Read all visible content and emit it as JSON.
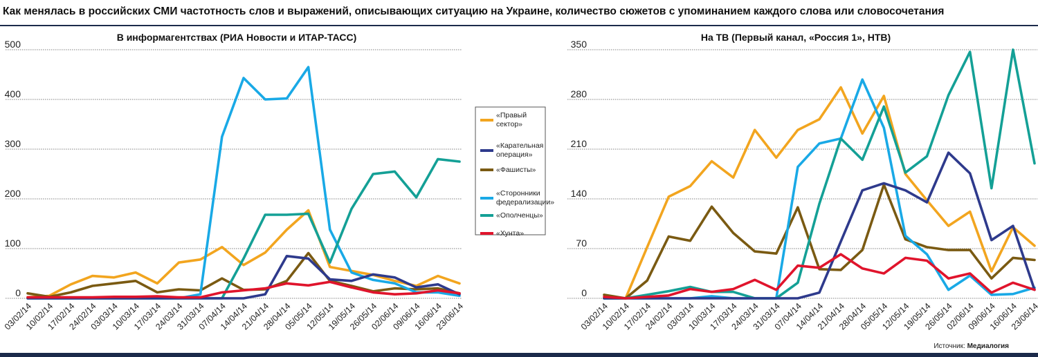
{
  "title": "Как менялась в российских СМИ частотность слов и выражений, описывающих ситуацию на Украине, количество сюжетов с упоминанием каждого слова или словосочетания",
  "source_label": "Источник:",
  "source_value": "Медиалогия",
  "colors": {
    "pravy_sektor": "#f2a51f",
    "karatelnaya": "#2e3a8c",
    "fashisty": "#7a5a12",
    "storonniki": "#19a9e6",
    "opolchentsy": "#14a096",
    "hunta": "#e0142c"
  },
  "legend": [
    {
      "key": "pravy_sektor",
      "lines": [
        "«Правый",
        "сектор»"
      ]
    },
    {
      "key": "karatelnaya",
      "lines": [
        "«Карательная",
        "операция»"
      ]
    },
    {
      "key": "fashisty",
      "lines": [
        "«Фашисты»"
      ]
    },
    {
      "key": "storonniki",
      "lines": [
        "«Сторонники",
        "федерализации»"
      ]
    },
    {
      "key": "opolchentsy",
      "lines": [
        "«Ополченцы»"
      ]
    },
    {
      "key": "hunta",
      "lines": [
        "«Хунта»"
      ]
    }
  ],
  "chart_data": [
    {
      "type": "line",
      "title": "В информагентствах (РИА Новости и ИТАР-ТАСС)",
      "ylim": [
        0,
        500
      ],
      "yticks": [
        "0",
        "100",
        "200",
        "300",
        "400",
        "500"
      ],
      "grid": true,
      "x": [
        "03/02/14",
        "10/02/14",
        "17/02/14",
        "24/02/14",
        "03/03/14",
        "10/03/14",
        "17/03/14",
        "24/03/14",
        "31/03/14",
        "07/04/14",
        "14/04/14",
        "21/04/14",
        "28/04/14",
        "05/05/14",
        "12/05/14",
        "19/05/14",
        "26/05/14",
        "02/06/14",
        "09/06/14",
        "16/06/14",
        "23/06/14"
      ],
      "series": [
        {
          "name": "«Правый сектор»",
          "key": "pravy_sektor",
          "values": [
            2,
            5,
            28,
            45,
            42,
            52,
            30,
            72,
            78,
            103,
            67,
            92,
            138,
            177,
            63,
            55,
            47,
            35,
            25,
            45,
            30
          ]
        },
        {
          "name": "«Карательная операция»",
          "key": "karatelnaya",
          "values": [
            0,
            0,
            0,
            0,
            0,
            0,
            0,
            0,
            0,
            0,
            0,
            8,
            85,
            80,
            38,
            35,
            48,
            42,
            22,
            28,
            8
          ]
        },
        {
          "name": "«Фашисты»",
          "key": "fashisty",
          "values": [
            10,
            3,
            12,
            25,
            30,
            35,
            12,
            18,
            16,
            40,
            17,
            18,
            35,
            91,
            35,
            25,
            14,
            20,
            18,
            20,
            10
          ]
        },
        {
          "name": "«Сторонники федерализации»",
          "key": "storonniki",
          "values": [
            0,
            0,
            0,
            0,
            0,
            0,
            0,
            0,
            8,
            325,
            443,
            400,
            402,
            465,
            138,
            52,
            37,
            30,
            12,
            12,
            5
          ]
        },
        {
          "name": "«Ополченцы»",
          "key": "opolchentsy",
          "values": [
            0,
            0,
            0,
            0,
            0,
            0,
            0,
            0,
            0,
            0,
            80,
            168,
            168,
            170,
            72,
            180,
            250,
            255,
            203,
            280,
            275
          ]
        },
        {
          "name": "«Хунта»",
          "key": "hunta",
          "values": [
            2,
            2,
            2,
            2,
            3,
            3,
            4,
            2,
            2,
            12,
            16,
            20,
            30,
            26,
            33,
            22,
            12,
            8,
            10,
            16,
            10
          ]
        }
      ]
    },
    {
      "type": "line",
      "title": "На ТВ (Первый канал, «Россия 1», НТВ)",
      "ylim": [
        0,
        350
      ],
      "yticks": [
        "0",
        "70",
        "140",
        "210",
        "280",
        "350"
      ],
      "grid": true,
      "x": [
        "03/02/14",
        "10/02/14",
        "17/02/14",
        "24/02/14",
        "03/03/14",
        "10/03/14",
        "17/03/14",
        "24/03/14",
        "31/03/14",
        "07/04/14",
        "14/04/14",
        "21/04/14",
        "28/04/14",
        "05/05/14",
        "12/05/14",
        "19/05/14",
        "26/05/14",
        "02/06/14",
        "09/06/14",
        "16/06/14",
        "23/06/14"
      ],
      "series": [
        {
          "name": "«Правый сектор»",
          "key": "pravy_sektor",
          "values": [
            0,
            0,
            72,
            143,
            158,
            193,
            170,
            237,
            198,
            237,
            252,
            297,
            232,
            285,
            175,
            138,
            102,
            122,
            38,
            100,
            74
          ]
        },
        {
          "name": "«Карательная операция»",
          "key": "karatelnaya",
          "values": [
            0,
            0,
            0,
            0,
            0,
            0,
            0,
            0,
            0,
            0,
            8,
            80,
            152,
            162,
            152,
            135,
            205,
            176,
            82,
            102,
            12
          ]
        },
        {
          "name": "«Фашисты»",
          "key": "fashisty",
          "values": [
            5,
            0,
            25,
            87,
            81,
            129,
            92,
            66,
            63,
            128,
            41,
            40,
            68,
            160,
            83,
            72,
            68,
            68,
            28,
            57,
            54
          ]
        },
        {
          "name": "«Сторонники федерализации»",
          "key": "storonniki",
          "values": [
            0,
            0,
            0,
            0,
            0,
            3,
            0,
            0,
            0,
            185,
            218,
            225,
            308,
            240,
            88,
            62,
            12,
            32,
            5,
            6,
            15
          ]
        },
        {
          "name": "«Ополченцы»",
          "key": "opolchentsy",
          "values": [
            0,
            0,
            5,
            10,
            16,
            9,
            9,
            0,
            0,
            22,
            133,
            225,
            195,
            270,
            177,
            200,
            286,
            347,
            155,
            350,
            190
          ]
        },
        {
          "name": "«Хунта»",
          "key": "hunta",
          "values": [
            2,
            0,
            2,
            4,
            13,
            9,
            13,
            26,
            12,
            46,
            43,
            62,
            42,
            35,
            57,
            53,
            28,
            35,
            8,
            22,
            12
          ]
        }
      ]
    }
  ]
}
